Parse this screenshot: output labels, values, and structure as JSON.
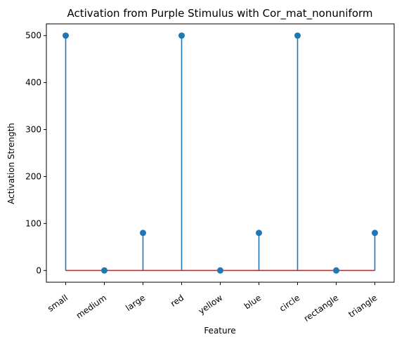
{
  "chart_data": {
    "type": "stem",
    "title": "Activation from Purple Stimulus with Cor_mat_nonuniform",
    "xlabel": "Feature",
    "ylabel": "Activation Strength",
    "categories": [
      "small",
      "medium",
      "large",
      "red",
      "yellow",
      "blue",
      "circle",
      "rectangle",
      "triangle"
    ],
    "values": [
      500,
      0,
      80,
      500,
      0,
      80,
      500,
      0,
      80
    ],
    "ylim": [
      -25,
      525
    ],
    "yticks": [
      0,
      100,
      200,
      300,
      400,
      500
    ],
    "grid": false,
    "legend": "none",
    "colors": {
      "stem": "#1f77b4",
      "marker": "#1f77b4",
      "baseline": "#d62728"
    }
  }
}
